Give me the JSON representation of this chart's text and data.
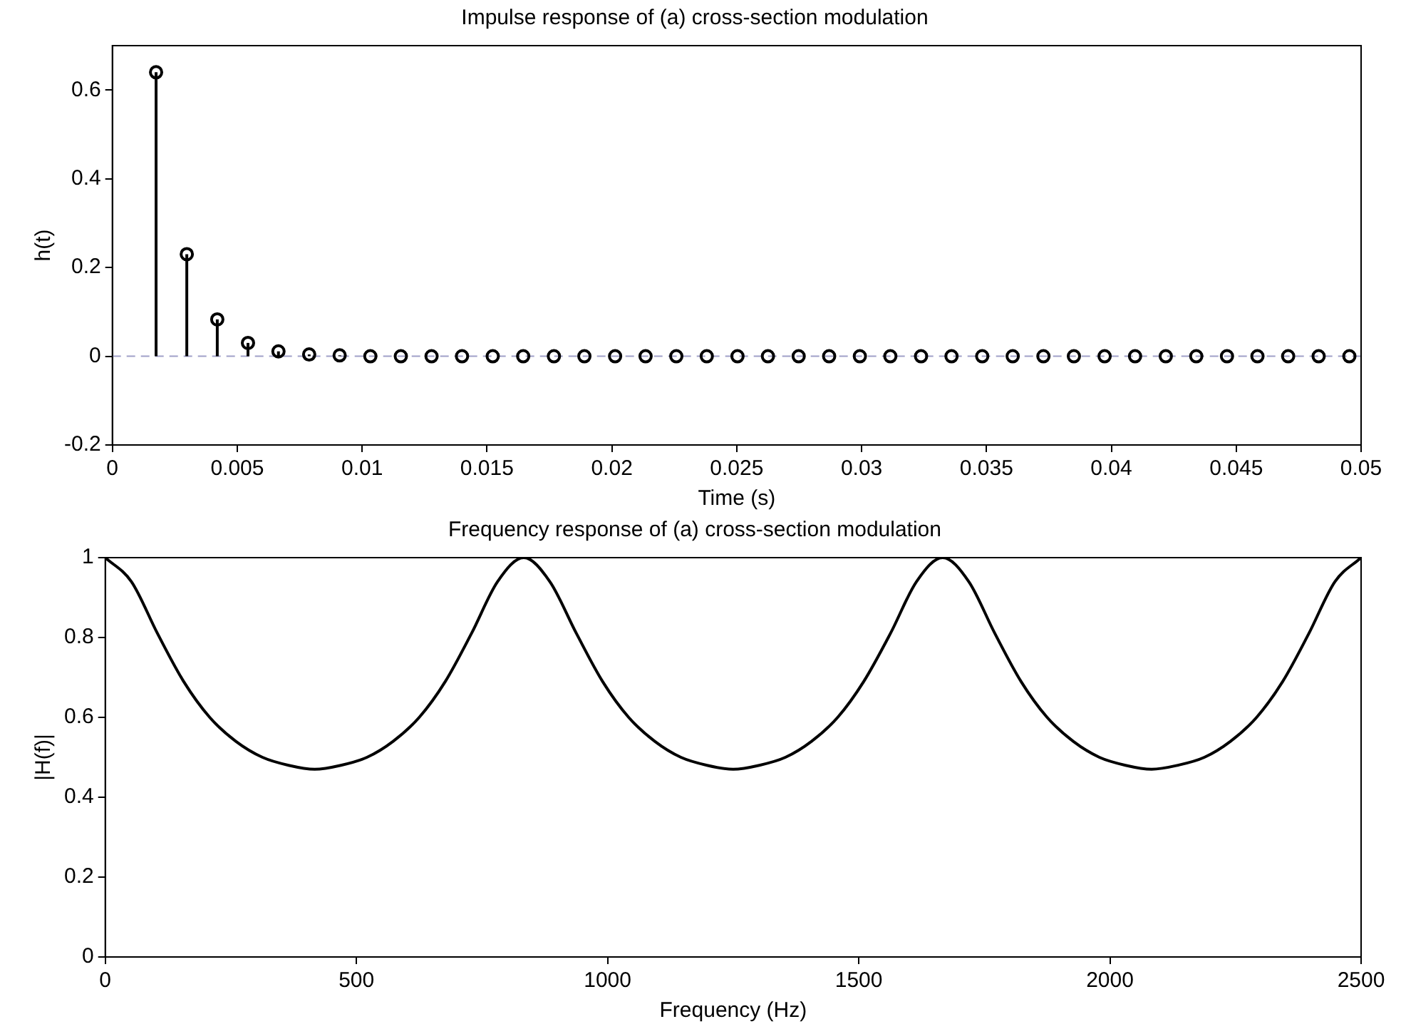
{
  "chart_data": [
    {
      "type": "lollipop",
      "title": "Impulse response of (a) cross-section modulation",
      "xlabel": "Time (s)",
      "ylabel": "h(t)",
      "x": [
        0.00175,
        0.00298,
        0.0042,
        0.00543,
        0.00665,
        0.00788,
        0.0091,
        0.01033,
        0.01155,
        0.01278,
        0.014,
        0.01523,
        0.01645,
        0.01768,
        0.0189,
        0.02013,
        0.02135,
        0.02258,
        0.0238,
        0.02503,
        0.02625,
        0.02748,
        0.0287,
        0.02993,
        0.03115,
        0.03238,
        0.0336,
        0.03483,
        0.03605,
        0.03728,
        0.0385,
        0.03973,
        0.04095,
        0.04218,
        0.0434,
        0.04463,
        0.04585,
        0.04708,
        0.0483,
        0.04953
      ],
      "series": [
        {
          "color": "#000000",
          "values": [
            0.64,
            0.23,
            0.083,
            0.03,
            0.011,
            0.004,
            0.002,
            0,
            0,
            0,
            0,
            0,
            0,
            0,
            0,
            0,
            0,
            0,
            0,
            0,
            0,
            0,
            0,
            0,
            0,
            0,
            0,
            0,
            0,
            0,
            0,
            0,
            0,
            0,
            0,
            0,
            0,
            0,
            0,
            0
          ]
        }
      ],
      "marker": "circle",
      "xlim": [
        0,
        0.05
      ],
      "ylim": [
        -0.2,
        0.7
      ],
      "xticks": [
        0,
        0.005,
        0.01,
        0.015,
        0.02,
        0.025,
        0.03,
        0.035,
        0.04,
        0.045,
        0.05
      ],
      "yticks": [
        -0.2,
        0,
        0.2,
        0.4,
        0.6
      ],
      "ref_lines": [
        {
          "axis": "y",
          "value": 0,
          "color": "#a0a0c8",
          "line_style": "dashed"
        }
      ]
    },
    {
      "type": "line",
      "title": "Frequency response of (a) cross-section modulation",
      "xlabel": "Frequency (Hz)",
      "ylabel": "|H(f)|",
      "x": [
        0,
        52,
        104,
        156,
        208,
        260,
        313,
        365,
        417,
        469,
        521,
        573,
        625,
        677,
        729,
        781,
        833,
        885,
        938,
        990,
        1042,
        1094,
        1146,
        1198,
        1250,
        1302,
        1354,
        1406,
        1458,
        1510,
        1563,
        1615,
        1667,
        1719,
        1771,
        1823,
        1875,
        1927,
        1979,
        2031,
        2083,
        2135,
        2188,
        2240,
        2292,
        2344,
        2396,
        2448,
        2500
      ],
      "series": [
        {
          "color": "#000000",
          "values": [
            1,
            0.94,
            0.81,
            0.69,
            0.6,
            0.54,
            0.5,
            0.48,
            0.47,
            0.48,
            0.5,
            0.54,
            0.6,
            0.69,
            0.81,
            0.94,
            1,
            0.94,
            0.81,
            0.69,
            0.6,
            0.54,
            0.5,
            0.48,
            0.47,
            0.48,
            0.5,
            0.54,
            0.6,
            0.69,
            0.81,
            0.94,
            1,
            0.94,
            0.81,
            0.69,
            0.6,
            0.54,
            0.5,
            0.48,
            0.47,
            0.48,
            0.5,
            0.54,
            0.6,
            0.69,
            0.81,
            0.94,
            1
          ]
        }
      ],
      "marker": "none",
      "line_style": "solid",
      "xlim": [
        0,
        2500
      ],
      "ylim": [
        0,
        1
      ],
      "xticks": [
        0,
        500,
        1000,
        1500,
        2000,
        2500
      ],
      "yticks": [
        0,
        0.2,
        0.4,
        0.6,
        0.8,
        1
      ]
    }
  ]
}
